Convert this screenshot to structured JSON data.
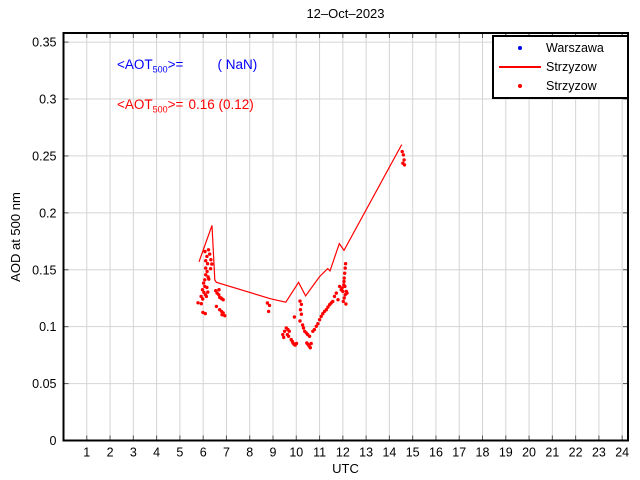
{
  "chart_data": {
    "type": "line+scatter",
    "title": "12–Oct–2023",
    "xlabel": "UTC",
    "ylabel": "AOD at 500 nm",
    "xlim": [
      0,
      24.25
    ],
    "ylim": [
      0,
      0.358
    ],
    "grid": true,
    "xticks": [
      "1",
      "2",
      "3",
      "4",
      "5",
      "6",
      "7",
      "8",
      "9",
      "10",
      "11",
      "12",
      "13",
      "14",
      "15",
      "16",
      "17",
      "18",
      "19",
      "20",
      "21",
      "22",
      "23",
      "24"
    ],
    "yticks": [
      [
        0,
        "0"
      ],
      [
        0.05,
        "0.05"
      ],
      [
        0.1,
        "0.1"
      ],
      [
        0.15,
        "0.15"
      ],
      [
        0.2,
        "0.2"
      ],
      [
        0.25,
        "0.25"
      ],
      [
        0.3,
        "0.3"
      ],
      [
        0.35,
        "0.35"
      ]
    ],
    "colors": {
      "warszawa": "#0000ff",
      "strzyzow": "#ff0000",
      "grid": "#d4d4d4",
      "axis": "#000000"
    },
    "legend": {
      "position": "top-right",
      "entries": [
        {
          "label": "Warszawa",
          "marker": "dot",
          "color": "#0000ff"
        },
        {
          "label": "Strzyzow",
          "marker": "line",
          "color": "#ff0000"
        },
        {
          "label": "Strzyzow",
          "marker": "dot",
          "color": "#ff0000"
        }
      ]
    },
    "annotations": [
      {
        "pre": "<AOT",
        "sub": "500",
        "post": ">=",
        "val": "( NaN)",
        "color": "#0000ff"
      },
      {
        "pre": "<AOT",
        "sub": "500",
        "post": ">=",
        "val": "0.16 (0.12)",
        "color": "#ff0000"
      }
    ],
    "series": [
      {
        "name": "Warszawa",
        "type": "scatter",
        "color": "#0000ff",
        "points": []
      },
      {
        "name": "Strzyzow",
        "type": "line",
        "color": "#ff0000",
        "points": [
          [
            5.82,
            0.157
          ],
          [
            6.38,
            0.189
          ],
          [
            6.5,
            0.141
          ],
          [
            6.57,
            0.139
          ],
          [
            8.9,
            0.1245
          ],
          [
            9.55,
            0.1215
          ],
          [
            10.1,
            0.139
          ],
          [
            10.4,
            0.127
          ],
          [
            11.0,
            0.144
          ],
          [
            11.35,
            0.151
          ],
          [
            11.45,
            0.149
          ],
          [
            11.85,
            0.173
          ],
          [
            12.05,
            0.167
          ],
          [
            14.53,
            0.26
          ]
        ]
      },
      {
        "name": "Strzyzow",
        "type": "scatter",
        "color": "#ff0000",
        "points": [
          [
            5.78,
            0.121
          ],
          [
            5.92,
            0.1202
          ],
          [
            5.99,
            0.1125
          ],
          [
            6.09,
            0.1115
          ],
          [
            6.08,
            0.166
          ],
          [
            6.16,
            0.1617
          ],
          [
            6.11,
            0.158
          ],
          [
            6.19,
            0.1553
          ],
          [
            6.11,
            0.1515
          ],
          [
            6.17,
            0.1485
          ],
          [
            6.11,
            0.1456
          ],
          [
            6.21,
            0.1436
          ],
          [
            6.07,
            0.1412
          ],
          [
            6.24,
            0.1418
          ],
          [
            6.02,
            0.1383
          ],
          [
            6.07,
            0.1354
          ],
          [
            5.97,
            0.1325
          ],
          [
            6.03,
            0.1301
          ],
          [
            5.91,
            0.1266
          ],
          [
            5.98,
            0.1243
          ],
          [
            6.16,
            0.1345
          ],
          [
            6.2,
            0.1304
          ],
          [
            6.1,
            0.128
          ],
          [
            6.14,
            0.1266
          ],
          [
            6.32,
            0.1509
          ],
          [
            6.37,
            0.155
          ],
          [
            6.33,
            0.1588
          ],
          [
            6.28,
            0.1638
          ],
          [
            6.23,
            0.1675
          ],
          [
            6.54,
            0.1316
          ],
          [
            6.6,
            0.1295
          ],
          [
            6.67,
            0.128
          ],
          [
            6.71,
            0.1257
          ],
          [
            6.76,
            0.1252
          ],
          [
            6.8,
            0.1246
          ],
          [
            6.86,
            0.1237
          ],
          [
            6.68,
            0.1325
          ],
          [
            6.57,
            0.1178
          ],
          [
            6.71,
            0.1149
          ],
          [
            6.79,
            0.1134
          ],
          [
            6.86,
            0.112
          ],
          [
            6.81,
            0.1105
          ],
          [
            6.93,
            0.1096
          ],
          [
            8.76,
            0.1208
          ],
          [
            8.85,
            0.1187
          ],
          [
            8.81,
            0.1134
          ],
          [
            9.42,
            0.093
          ],
          [
            9.46,
            0.0906
          ],
          [
            9.5,
            0.0959
          ],
          [
            9.57,
            0.0989
          ],
          [
            9.64,
            0.0974
          ],
          [
            9.7,
            0.0959
          ],
          [
            9.62,
            0.093
          ],
          [
            9.67,
            0.0915
          ],
          [
            9.78,
            0.0886
          ],
          [
            9.83,
            0.0871
          ],
          [
            9.86,
            0.0857
          ],
          [
            9.9,
            0.0845
          ],
          [
            9.95,
            0.0838
          ],
          [
            10.01,
            0.0852
          ],
          [
            9.92,
            0.1085
          ],
          [
            10.16,
            0.1225
          ],
          [
            10.22,
            0.1196
          ],
          [
            10.18,
            0.1149
          ],
          [
            10.22,
            0.111
          ],
          [
            10.16,
            0.105
          ],
          [
            10.27,
            0.1015
          ],
          [
            10.31,
            0.0988
          ],
          [
            10.36,
            0.0959
          ],
          [
            10.43,
            0.0945
          ],
          [
            10.49,
            0.093
          ],
          [
            10.45,
            0.0857
          ],
          [
            10.5,
            0.0845
          ],
          [
            10.55,
            0.083
          ],
          [
            10.6,
            0.0815
          ],
          [
            10.64,
            0.0852
          ],
          [
            10.57,
            0.0915
          ],
          [
            10.71,
            0.0959
          ],
          [
            10.78,
            0.0974
          ],
          [
            10.86,
            0.1003
          ],
          [
            10.93,
            0.1026
          ],
          [
            11.0,
            0.1061
          ],
          [
            11.07,
            0.109
          ],
          [
            11.14,
            0.1114
          ],
          [
            11.21,
            0.1134
          ],
          [
            11.29,
            0.1149
          ],
          [
            11.36,
            0.1172
          ],
          [
            11.43,
            0.1193
          ],
          [
            11.5,
            0.1208
          ],
          [
            11.57,
            0.1222
          ],
          [
            11.64,
            0.1266
          ],
          [
            11.72,
            0.1295
          ],
          [
            11.79,
            0.1237
          ],
          [
            11.86,
            0.1354
          ],
          [
            11.93,
            0.1325
          ],
          [
            11.97,
            0.134
          ],
          [
            12.0,
            0.131
          ],
          [
            12.04,
            0.1368
          ],
          [
            12.06,
            0.1427
          ],
          [
            12.08,
            0.147
          ],
          [
            12.1,
            0.1515
          ],
          [
            12.12,
            0.1553
          ],
          [
            12.05,
            0.1397
          ],
          [
            12.09,
            0.1354
          ],
          [
            12.15,
            0.131
          ],
          [
            12.18,
            0.1295
          ],
          [
            12.1,
            0.1281
          ],
          [
            12.06,
            0.1252
          ],
          [
            12.02,
            0.1222
          ],
          [
            12.13,
            0.1199
          ],
          [
            14.55,
            0.2538
          ],
          [
            14.63,
            0.2465
          ],
          [
            14.58,
            0.2436
          ],
          [
            14.65,
            0.2421
          ],
          [
            14.6,
            0.2509
          ]
        ]
      }
    ]
  }
}
